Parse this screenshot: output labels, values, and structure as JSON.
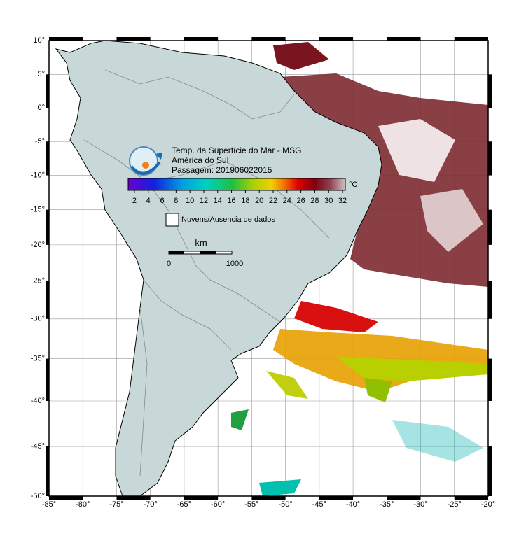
{
  "header": {
    "lines": [
      "Temp. da Superfície do Mar - MSG",
      "América do Sul",
      "Passagem: 201906022015"
    ]
  },
  "colorbar": {
    "range": [
      1.1,
      32.4
    ],
    "ticks": [
      2,
      4,
      6,
      8,
      10,
      12,
      14,
      16,
      18,
      20,
      22,
      24,
      26,
      28,
      30,
      32
    ],
    "unit": "°C"
  },
  "legend": {
    "label": "Nuvens/Ausencia de dados"
  },
  "scale": {
    "unit": "km",
    "labels": [
      "0",
      "1000"
    ]
  },
  "axes": {
    "xlim": [
      -85,
      -20
    ],
    "ylim": [
      -50,
      10
    ],
    "xticks": [
      {
        "value": -85,
        "label": "-85°"
      },
      {
        "value": -80,
        "label": "-80°"
      },
      {
        "value": -75,
        "label": "-75°"
      },
      {
        "value": -70,
        "label": "-70°"
      },
      {
        "value": -65,
        "label": "-65°"
      },
      {
        "value": -60,
        "label": "-60°"
      },
      {
        "value": -55,
        "label": "-55°"
      },
      {
        "value": -50,
        "label": "-50°"
      },
      {
        "value": -45,
        "label": "-45°"
      },
      {
        "value": -40,
        "label": "-40°"
      },
      {
        "value": -35,
        "label": "-35°"
      },
      {
        "value": -30,
        "label": "-30°"
      },
      {
        "value": -25,
        "label": "-25°"
      },
      {
        "value": -20,
        "label": "-20°"
      }
    ],
    "yticks": [
      {
        "value": 10,
        "label": "10°"
      },
      {
        "value": 5,
        "label": "5°"
      },
      {
        "value": 0,
        "label": "0°"
      },
      {
        "value": -5,
        "label": "-5°"
      },
      {
        "value": -10,
        "label": "-10°"
      },
      {
        "value": -15,
        "label": "-15°"
      },
      {
        "value": -20,
        "label": "-20°"
      },
      {
        "value": -25,
        "label": "-25°"
      },
      {
        "value": -30,
        "label": "-30°"
      },
      {
        "value": -35,
        "label": "-35°"
      },
      {
        "value": -40,
        "label": "-40°"
      },
      {
        "value": -45,
        "label": "-45°"
      },
      {
        "value": -50,
        "label": "-50°"
      }
    ]
  }
}
